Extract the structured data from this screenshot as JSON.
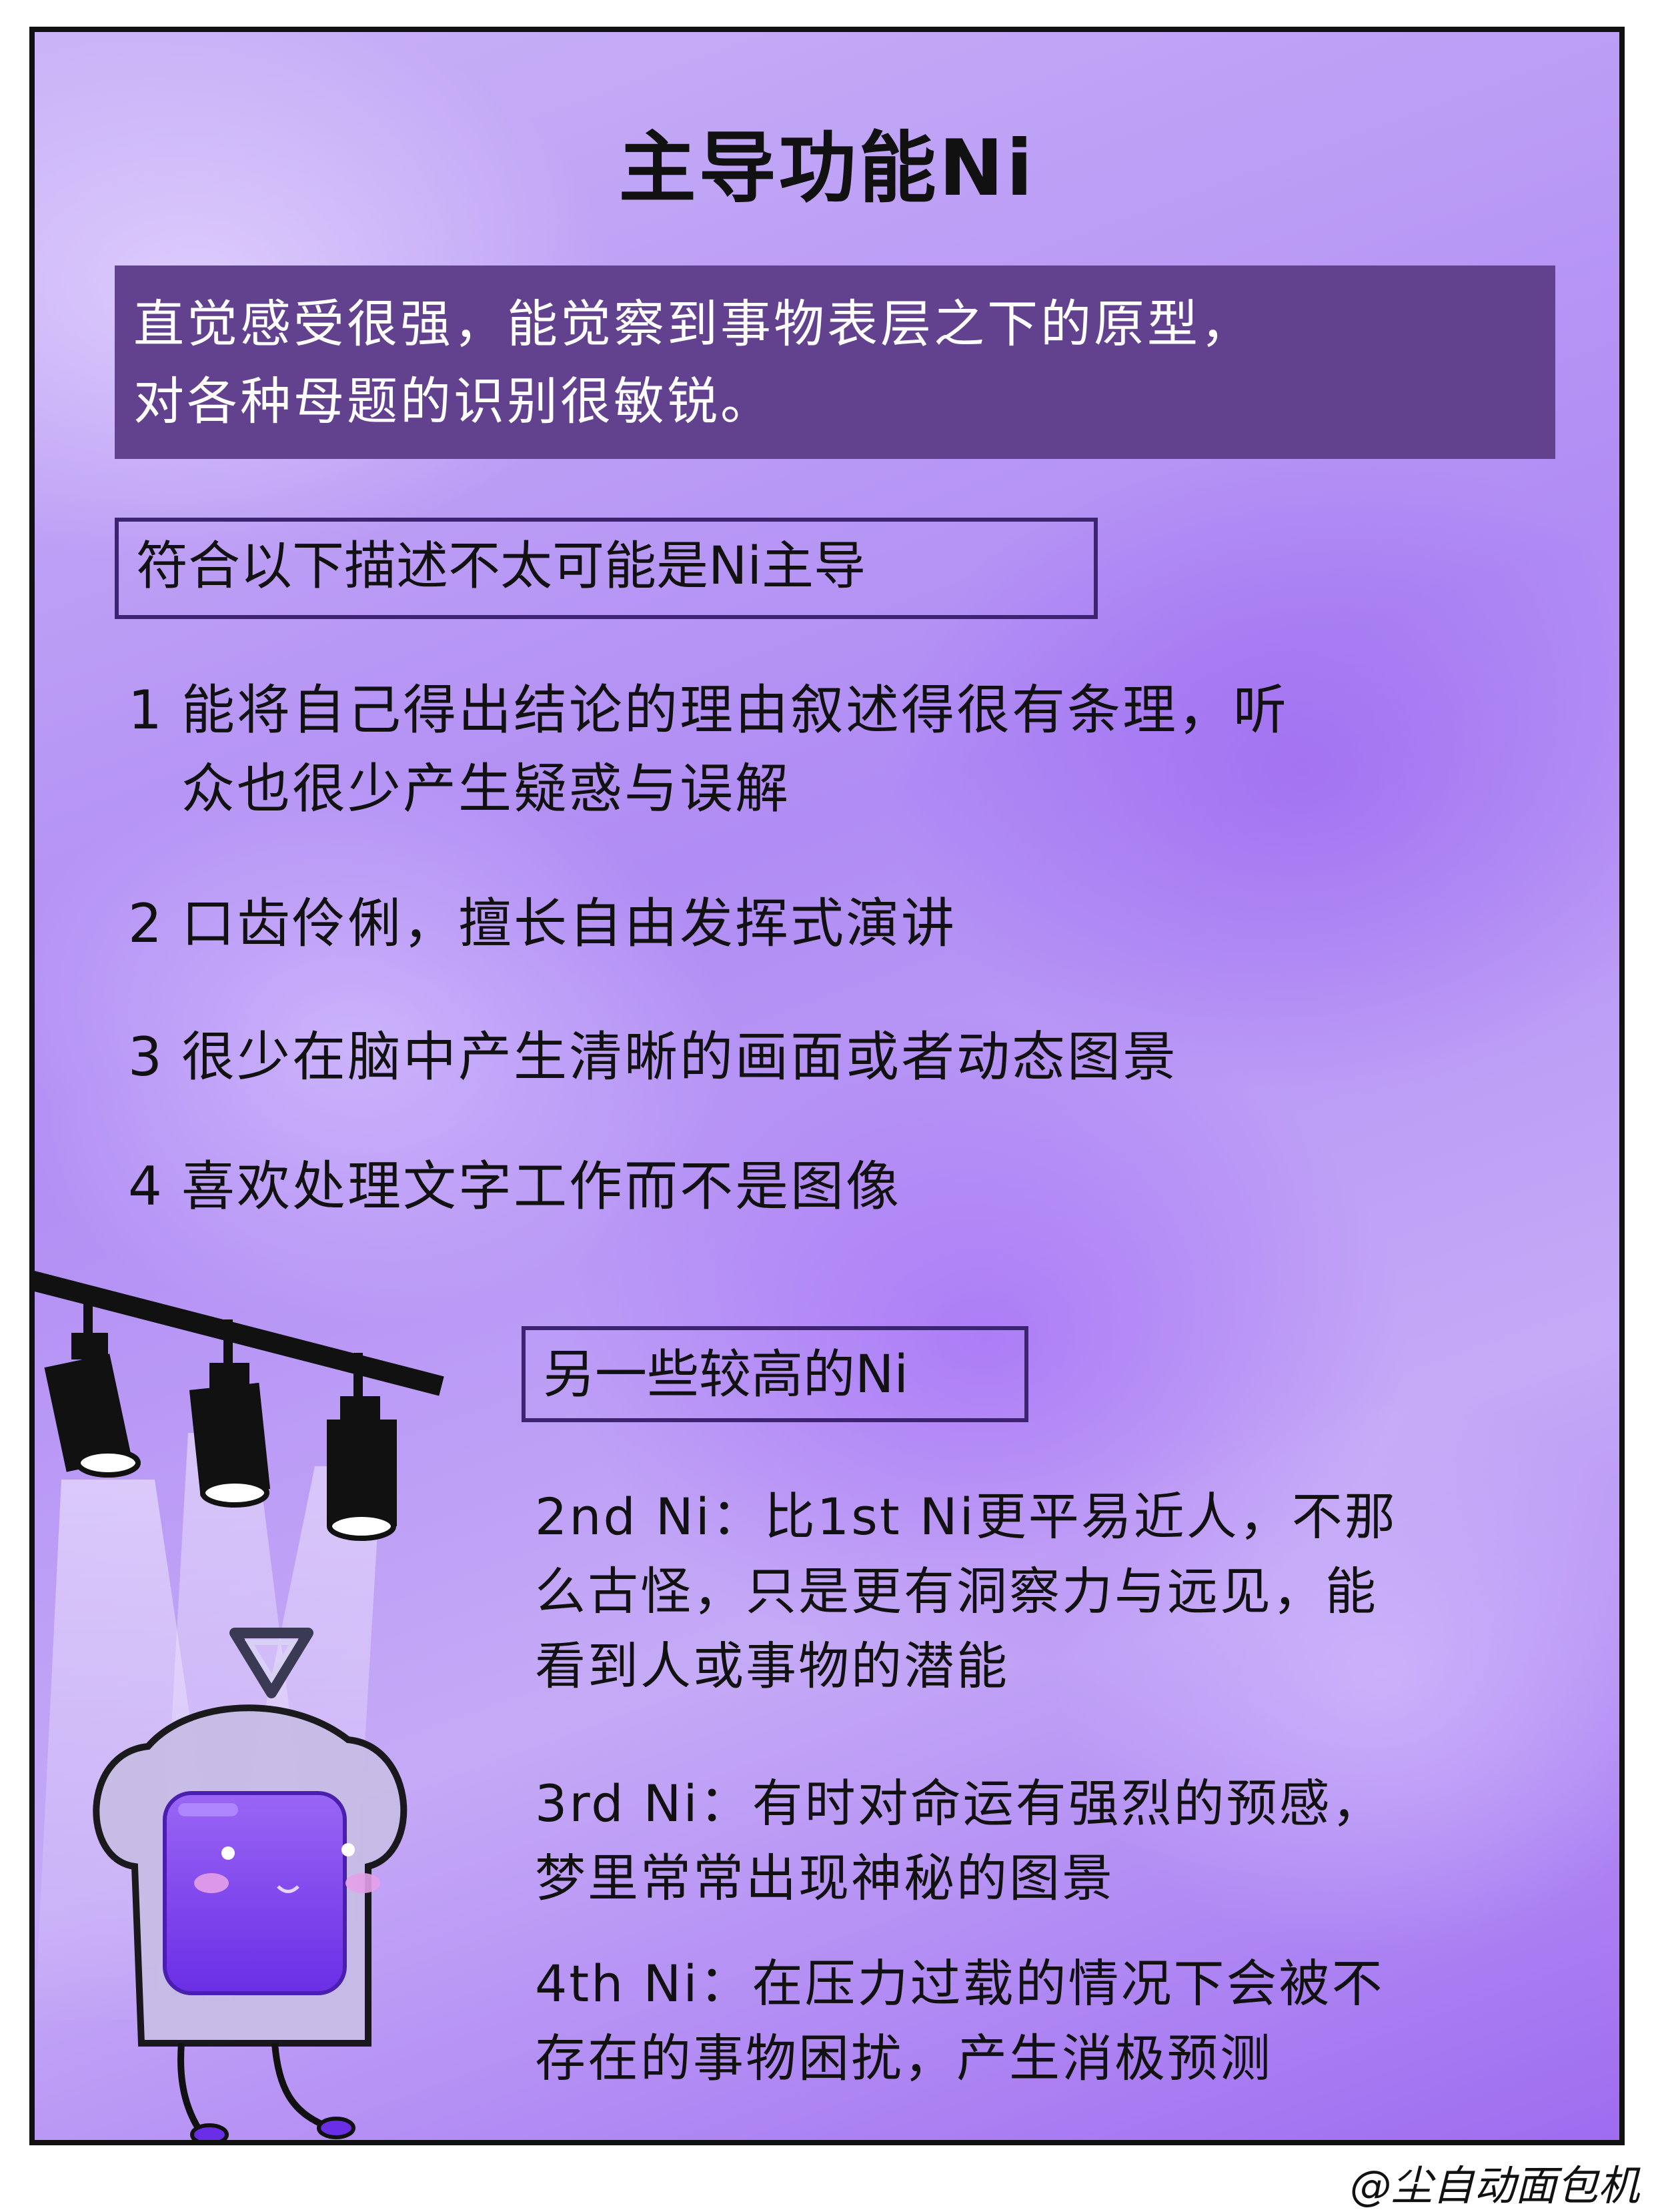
{
  "title": "主导功能Ni",
  "summary": {
    "line1": "直觉感受很强，能觉察到事物表层之下的原型，",
    "line2": "对各种母题的识别很敏锐。"
  },
  "unlikely_section": {
    "heading": "符合以下描述不太可能是Ni主导",
    "items": [
      {
        "num": "1",
        "line1": "能将自己得出结论的理由叙述得很有条理，听",
        "line2": "众也很少产生疑惑与误解"
      },
      {
        "num": "2",
        "line1": "口齿伶俐，擅长自由发挥式演讲"
      },
      {
        "num": "3",
        "line1": "很少在脑中产生清晰的画面或者动态图景"
      },
      {
        "num": "4",
        "line1": "喜欢处理文字工作而不是图像"
      }
    ]
  },
  "other_section": {
    "heading": "另一些较高的Ni",
    "items": [
      {
        "line1": "2nd Ni：比1st Ni更平易近人，不那",
        "line2": "么古怪，只是更有洞察力与远见，能",
        "line3": "看到人或事物的潜能"
      },
      {
        "line1": "3rd Ni：有时对命运有强烈的预感，",
        "line2": "梦里常常出现神秘的图景"
      },
      {
        "line1": "4th Ni：在压力过载的情况下会被不",
        "line2": "存在的事物困扰，产生消极预测"
      }
    ]
  },
  "signature": "@尘自动面包机",
  "colors": {
    "summary_bg": "#62428e",
    "heading_border": "#3d2470",
    "jam": "#7b3df0"
  },
  "icons": [
    "spotlight-icon",
    "impossible-triangle-icon",
    "toast-character-icon"
  ]
}
